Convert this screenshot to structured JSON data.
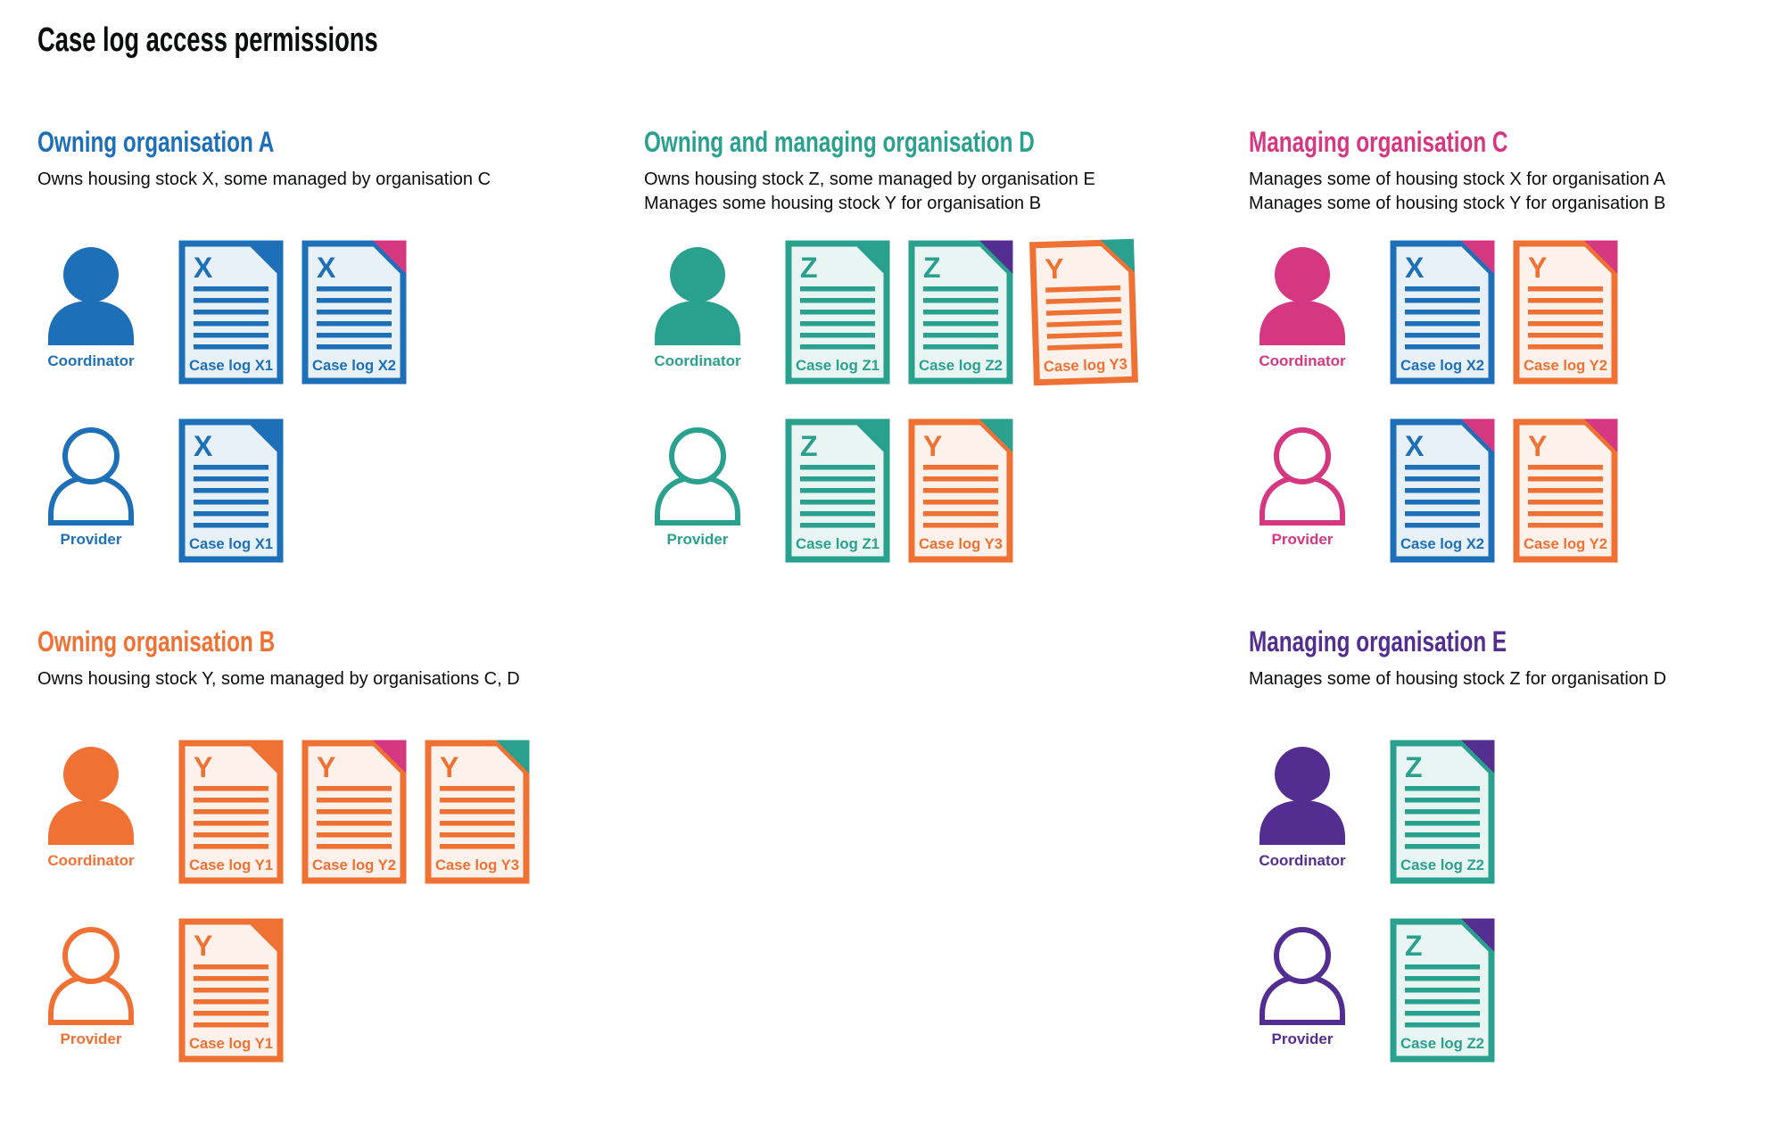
{
  "page": {
    "title": "Case log access permissions"
  },
  "roles": {
    "coordinator": "Coordinator",
    "provider": "Provider"
  },
  "colors": {
    "palette": {
      "blue": "#1d70b8",
      "teal": "#2aa18f",
      "pink": "#d53880",
      "orange": "#ef7134",
      "purple": "#532e90",
      "text": "#0b0c0c"
    },
    "tints": {
      "blue": "#e8f1f8",
      "teal": "#e9f5f2",
      "orange": "#fdf2eb"
    }
  },
  "organisations": [
    {
      "id": "a",
      "name": "Owning organisation A",
      "color": "blue",
      "grid": {
        "column": 1,
        "row": 1
      },
      "description_lines": [
        "Owns housing stock X, some managed by organisation C"
      ],
      "rows": [
        {
          "role": "coordinator",
          "person_style": "filled",
          "docs": [
            {
              "label": "Case log X1",
              "letter": "X",
              "color": "blue",
              "fold": "blue"
            },
            {
              "label": "Case log X2",
              "letter": "X",
              "color": "blue",
              "fold": "pink"
            }
          ]
        },
        {
          "role": "provider",
          "person_style": "outline",
          "docs": [
            {
              "label": "Case log X1",
              "letter": "X",
              "color": "blue",
              "fold": "blue"
            }
          ]
        }
      ]
    },
    {
      "id": "d",
      "name": "Owning and managing organisation D",
      "color": "teal",
      "grid": {
        "column": 2,
        "row": 1
      },
      "description_lines": [
        "Owns housing stock Z, some managed by organisation E",
        "Manages some housing stock Y for organisation B"
      ],
      "rows": [
        {
          "role": "coordinator",
          "person_style": "filled",
          "docs": [
            {
              "label": "Case log Z1",
              "letter": "Z",
              "color": "teal",
              "fold": "teal"
            },
            {
              "label": "Case log Z2",
              "letter": "Z",
              "color": "teal",
              "fold": "purple"
            },
            {
              "label": "Case log Y3",
              "letter": "Y",
              "color": "orange",
              "fold": "teal",
              "tilted": true
            }
          ]
        },
        {
          "role": "provider",
          "person_style": "outline",
          "docs": [
            {
              "label": "Case log Z1",
              "letter": "Z",
              "color": "teal",
              "fold": "teal"
            },
            {
              "label": "Case log Y3",
              "letter": "Y",
              "color": "orange",
              "fold": "teal"
            }
          ]
        }
      ]
    },
    {
      "id": "c",
      "name": "Managing organisation C",
      "color": "pink",
      "grid": {
        "column": 3,
        "row": 1
      },
      "description_lines": [
        "Manages some of housing stock X for organisation A",
        "Manages some of housing stock Y for organisation B"
      ],
      "rows": [
        {
          "role": "coordinator",
          "person_style": "filled",
          "docs": [
            {
              "label": "Case log X2",
              "letter": "X",
              "color": "blue",
              "fold": "pink"
            },
            {
              "label": "Case log Y2",
              "letter": "Y",
              "color": "orange",
              "fold": "pink"
            }
          ]
        },
        {
          "role": "provider",
          "person_style": "outline",
          "docs": [
            {
              "label": "Case log X2",
              "letter": "X",
              "color": "blue",
              "fold": "pink"
            },
            {
              "label": "Case log Y2",
              "letter": "Y",
              "color": "orange",
              "fold": "pink"
            }
          ]
        }
      ]
    },
    {
      "id": "b",
      "name": "Owning organisation B",
      "color": "orange",
      "grid": {
        "column": 1,
        "row": 2
      },
      "description_lines": [
        "Owns housing stock Y, some managed by organisations C, D"
      ],
      "rows": [
        {
          "role": "coordinator",
          "person_style": "filled",
          "docs": [
            {
              "label": "Case log Y1",
              "letter": "Y",
              "color": "orange",
              "fold": "orange"
            },
            {
              "label": "Case log Y2",
              "letter": "Y",
              "color": "orange",
              "fold": "pink"
            },
            {
              "label": "Case log Y3",
              "letter": "Y",
              "color": "orange",
              "fold": "teal"
            }
          ]
        },
        {
          "role": "provider",
          "person_style": "outline",
          "docs": [
            {
              "label": "Case log Y1",
              "letter": "Y",
              "color": "orange",
              "fold": "orange"
            }
          ]
        }
      ]
    },
    {
      "id": "e",
      "name": "Managing organisation E",
      "color": "purple",
      "grid": {
        "column": 3,
        "row": 2
      },
      "description_lines": [
        "Manages some of housing stock Z for organisation D"
      ],
      "rows": [
        {
          "role": "coordinator",
          "person_style": "filled",
          "docs": [
            {
              "label": "Case log Z2",
              "letter": "Z",
              "color": "teal",
              "fold": "purple"
            }
          ]
        },
        {
          "role": "provider",
          "person_style": "outline",
          "docs": [
            {
              "label": "Case log Z2",
              "letter": "Z",
              "color": "teal",
              "fold": "purple"
            }
          ]
        }
      ]
    }
  ]
}
